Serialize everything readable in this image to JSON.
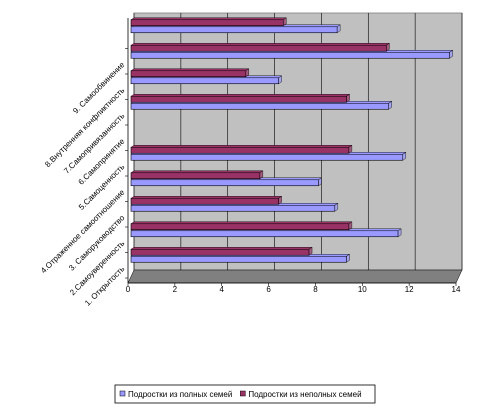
{
  "chart_data": {
    "type": "barh",
    "categories": [
      "1. Открытость",
      "2.Самоуверенность",
      "3. Саморуководство",
      "4.Отраженное самоотношение",
      "5.Самоценность",
      "6.Самопринятие",
      "7.Самопривязанность",
      "8.Внутренняя конфликтность",
      "9. Самообвинение",
      null
    ],
    "series": [
      {
        "name": "Подростки из полных семей",
        "color": "#9999ff",
        "values": [
          9.2,
          11.4,
          8.7,
          8.0,
          11.6,
          null,
          11.0,
          6.3,
          13.6,
          8.8
        ]
      },
      {
        "name": "Подростки из неполных семей",
        "color": "#993366",
        "values": [
          7.6,
          9.3,
          6.3,
          5.5,
          9.3,
          null,
          9.2,
          4.9,
          10.9,
          6.5
        ]
      }
    ],
    "xlim": [
      0,
      14
    ],
    "xticks": [
      0,
      2,
      4,
      6,
      8,
      10,
      12,
      14
    ],
    "grid": true,
    "legend": "bottom"
  }
}
